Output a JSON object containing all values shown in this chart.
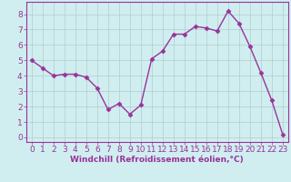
{
  "x": [
    0,
    1,
    2,
    3,
    4,
    5,
    6,
    7,
    8,
    9,
    10,
    11,
    12,
    13,
    14,
    15,
    16,
    17,
    18,
    19,
    20,
    21,
    22,
    23
  ],
  "y": [
    5.0,
    4.5,
    4.0,
    4.1,
    4.1,
    3.9,
    3.2,
    1.8,
    2.2,
    1.5,
    2.1,
    5.1,
    5.6,
    6.7,
    6.7,
    7.2,
    7.1,
    6.9,
    8.2,
    7.4,
    5.9,
    4.2,
    2.4,
    0.2
  ],
  "line_color": "#993399",
  "marker": "D",
  "marker_size": 2.5,
  "linewidth": 1.0,
  "bg_color": "#d0eef0",
  "grid_color": "#b0cece",
  "xlabel": "Windchill (Refroidissement éolien,°C)",
  "xlabel_color": "#993399",
  "tick_color": "#993399",
  "ylabel_ticks": [
    0,
    1,
    2,
    3,
    4,
    5,
    6,
    7,
    8
  ],
  "xlim": [
    -0.5,
    23.5
  ],
  "ylim": [
    -0.3,
    8.8
  ],
  "xlabel_fontsize": 6.5,
  "tick_fontsize": 6.5,
  "spine_color": "#993399"
}
